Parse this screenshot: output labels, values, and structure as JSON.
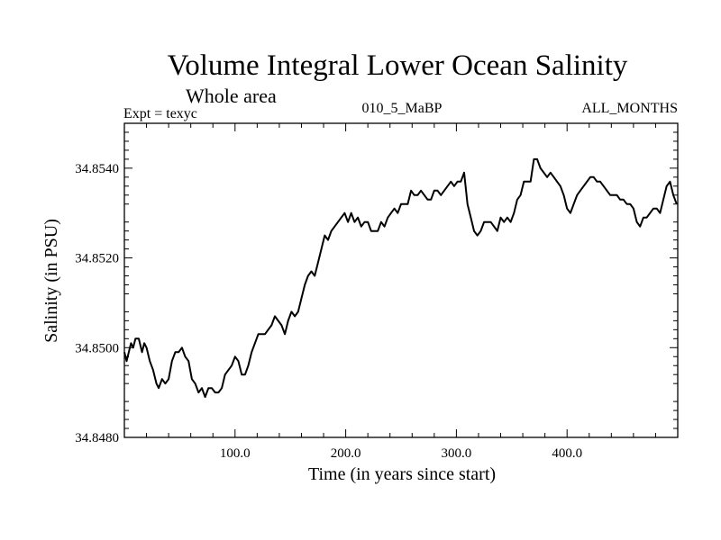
{
  "chart_data": {
    "type": "line",
    "title": "Volume Integral Lower Ocean Salinity",
    "subtitle": "Whole area",
    "header_left": "Expt = texyc",
    "header_center": "010_5_MaBP",
    "header_right": "ALL_MONTHS",
    "xlabel": "Time (in years since start)",
    "ylabel": "Salinity (in PSU)",
    "xlim": [
      0,
      500
    ],
    "ylim": [
      34.848,
      34.855
    ],
    "x_ticks": [
      100,
      200,
      300,
      400
    ],
    "x_tick_labels": [
      "100.0",
      "200.0",
      "300.0",
      "400.0"
    ],
    "y_ticks": [
      34.848,
      34.85,
      34.852,
      34.854
    ],
    "y_tick_labels": [
      "34.8480",
      "34.8500",
      "34.8520",
      "34.8540"
    ],
    "grid": false,
    "series": [
      {
        "color": "#000000",
        "x": [
          0,
          2,
          4,
          6,
          8,
          10,
          13,
          16,
          18,
          20,
          23,
          26,
          29,
          31,
          34,
          37,
          40,
          43,
          46,
          49,
          52,
          55,
          58,
          61,
          64,
          67,
          70,
          73,
          76,
          79,
          82,
          85,
          88,
          91,
          94,
          97,
          100,
          103,
          106,
          109,
          112,
          115,
          118,
          121,
          124,
          127,
          130,
          133,
          136,
          139,
          142,
          145,
          148,
          151,
          154,
          157,
          160,
          163,
          166,
          169,
          172,
          175,
          178,
          181,
          184,
          187,
          190,
          193,
          196,
          199,
          202,
          205,
          208,
          211,
          214,
          217,
          220,
          223,
          226,
          229,
          232,
          235,
          238,
          241,
          244,
          247,
          250,
          253,
          256,
          259,
          262,
          265,
          268,
          271,
          274,
          277,
          280,
          283,
          286,
          289,
          292,
          295,
          298,
          301,
          304,
          307,
          310,
          313,
          316,
          319,
          322,
          325,
          328,
          331,
          334,
          337,
          340,
          343,
          346,
          349,
          352,
          355,
          358,
          361,
          364,
          367,
          370,
          373,
          376,
          379,
          382,
          385,
          388,
          391,
          394,
          397,
          400,
          403,
          406,
          409,
          412,
          415,
          418,
          421,
          424,
          427,
          430,
          433,
          436,
          439,
          442,
          445,
          448,
          451,
          454,
          457,
          460,
          463,
          466,
          469,
          472,
          475,
          478,
          481,
          484,
          487,
          490,
          493,
          496,
          499
        ],
        "values": [
          34.8499,
          34.8497,
          34.8499,
          34.8501,
          34.85,
          34.8502,
          34.8502,
          34.8499,
          34.8501,
          34.85,
          34.8497,
          34.8495,
          34.8492,
          34.8491,
          34.8493,
          34.8492,
          34.8493,
          34.8497,
          34.8499,
          34.8499,
          34.85,
          34.8498,
          34.8497,
          34.8493,
          34.8492,
          34.849,
          34.8491,
          34.8489,
          34.8491,
          34.8491,
          34.849,
          34.849,
          34.8491,
          34.8494,
          34.8495,
          34.8496,
          34.8498,
          34.8497,
          34.8494,
          34.8494,
          34.8496,
          34.8499,
          34.8501,
          34.8503,
          34.8503,
          34.8503,
          34.8504,
          34.8505,
          34.8507,
          34.8506,
          34.8505,
          34.8503,
          34.8506,
          34.8508,
          34.8507,
          34.8508,
          34.8511,
          34.8514,
          34.8516,
          34.8517,
          34.8516,
          34.8519,
          34.8522,
          34.8525,
          34.8524,
          34.8526,
          34.8527,
          34.8528,
          34.8529,
          34.853,
          34.8528,
          34.853,
          34.8528,
          34.8529,
          34.8527,
          34.8528,
          34.8528,
          34.8526,
          34.8526,
          34.8526,
          34.8528,
          34.8527,
          34.8529,
          34.853,
          34.8531,
          34.853,
          34.8532,
          34.8532,
          34.8532,
          34.8535,
          34.8534,
          34.8534,
          34.8535,
          34.8534,
          34.8533,
          34.8533,
          34.8535,
          34.8535,
          34.8534,
          34.8535,
          34.8536,
          34.8537,
          34.8536,
          34.8537,
          34.8537,
          34.8539,
          34.8532,
          34.8529,
          34.8526,
          34.8525,
          34.8526,
          34.8528,
          34.8528,
          34.8528,
          34.8527,
          34.8526,
          34.8529,
          34.8528,
          34.8529,
          34.8528,
          34.853,
          34.8533,
          34.8534,
          34.8537,
          34.8537,
          34.8537,
          34.8542,
          34.8542,
          34.854,
          34.8539,
          34.8538,
          34.8539,
          34.8538,
          34.8537,
          34.8536,
          34.8534,
          34.8531,
          34.853,
          34.8532,
          34.8534,
          34.8535,
          34.8536,
          34.8537,
          34.8538,
          34.8538,
          34.8537,
          34.8537,
          34.8536,
          34.8535,
          34.8534,
          34.8534,
          34.8534,
          34.8533,
          34.8533,
          34.8532,
          34.8532,
          34.8531,
          34.8528,
          34.8527,
          34.8529,
          34.8529,
          34.853,
          34.8531,
          34.8531,
          34.853,
          34.8533,
          34.8536,
          34.8537,
          34.8534,
          34.8532
        ]
      }
    ]
  }
}
